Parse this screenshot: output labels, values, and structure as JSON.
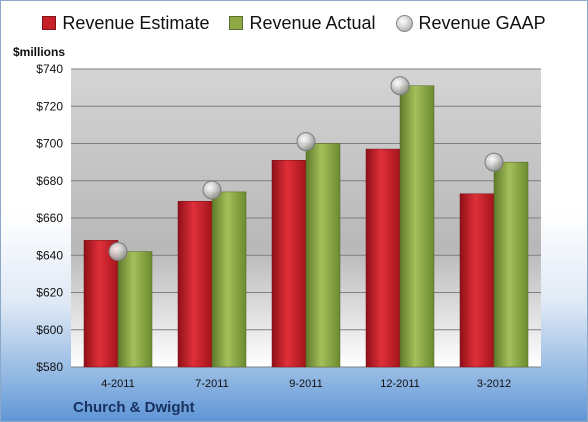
{
  "units_label": "$millions",
  "company": "Church & Dwight",
  "colors": {
    "estimate": "#c8202a",
    "actual": "#8faa44",
    "gaap": "#a8a8a8"
  },
  "chart_data": {
    "type": "bar",
    "categories": [
      "4-2011",
      "7-2011",
      "9-2011",
      "12-2011",
      "3-2012"
    ],
    "series": [
      {
        "name": "Revenue Estimate",
        "type": "bar",
        "values": [
          648,
          669,
          691,
          697,
          673
        ]
      },
      {
        "name": "Revenue Actual",
        "type": "bar",
        "values": [
          642,
          674,
          700,
          731,
          690
        ]
      },
      {
        "name": "Revenue GAAP",
        "type": "marker",
        "values": [
          642,
          675,
          701,
          731,
          690
        ]
      }
    ],
    "ylabel": "$millions",
    "ylim": [
      580,
      740
    ],
    "yticks": [
      "$580",
      "$600",
      "$620",
      "$640",
      "$660",
      "$680",
      "$700",
      "$720",
      "$740"
    ],
    "grid": true,
    "legend": "top"
  }
}
